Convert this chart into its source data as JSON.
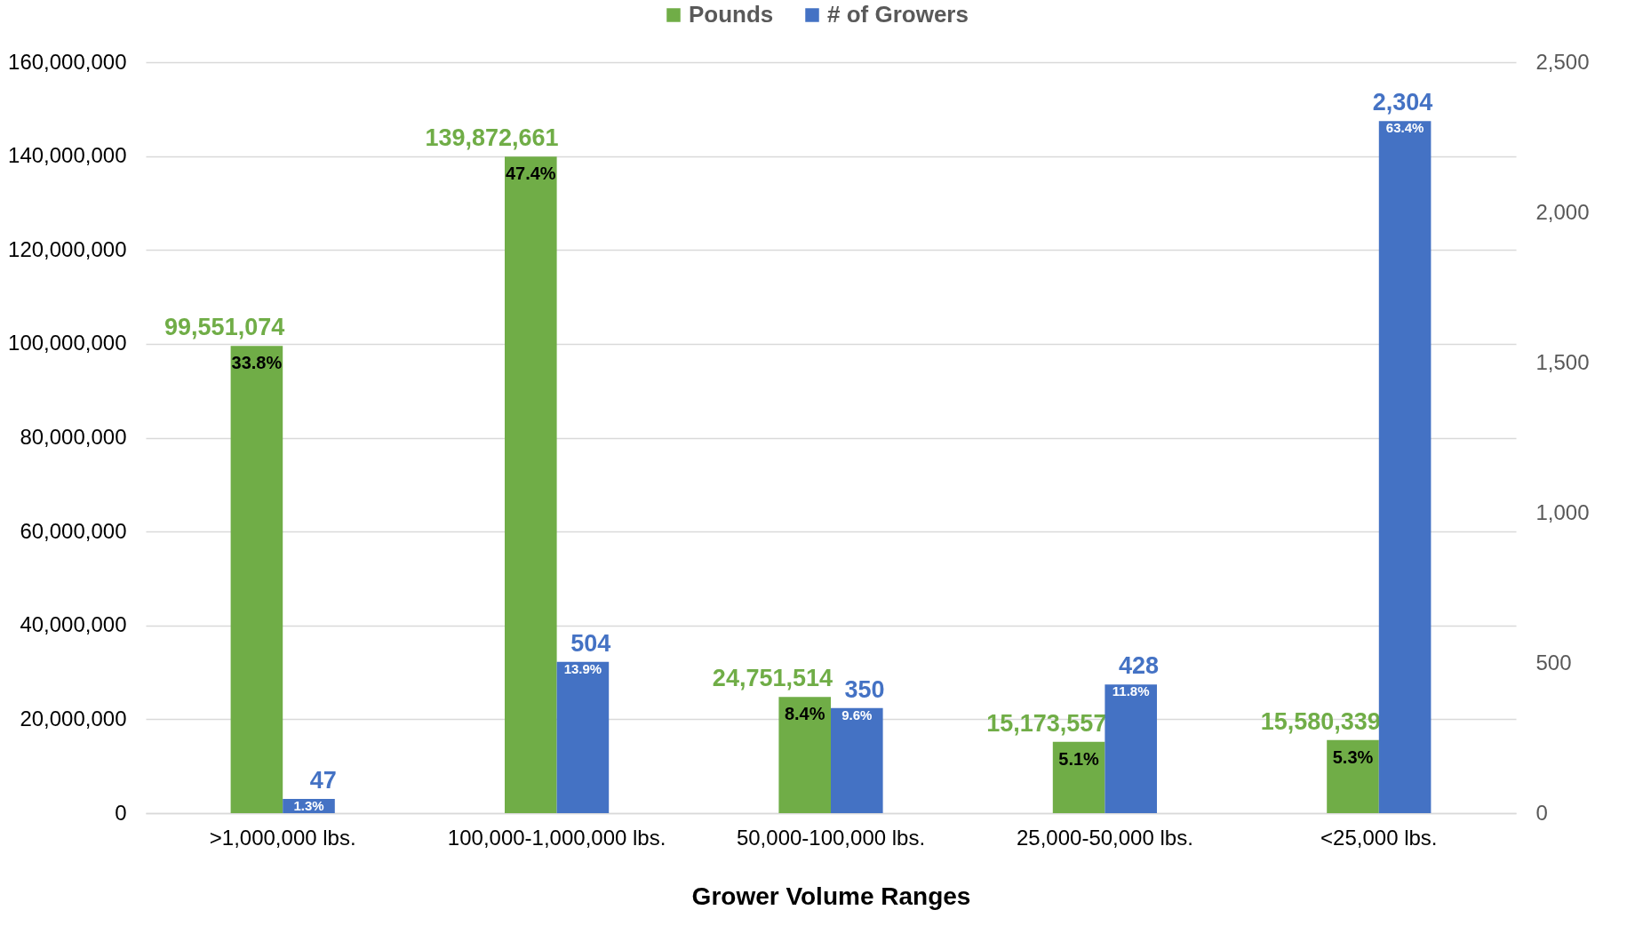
{
  "chart_data": {
    "type": "bar",
    "xlabel": "Grower Volume Ranges",
    "categories": [
      ">1,000,000 lbs.",
      "100,000-1,000,000 lbs.",
      "50,000-100,000 lbs.",
      "25,000-50,000 lbs.",
      "<25,000 lbs."
    ],
    "series": [
      {
        "name": "Pounds",
        "color": "#70ad47",
        "values": [
          99551074,
          139872661,
          24751514,
          15173557,
          15580339
        ],
        "value_labels": [
          "99,551,074",
          "139,872,661",
          "24,751,514",
          "15,173,557",
          "15,580,339"
        ]
      },
      {
        "name": "# of Growers",
        "color": "#4472c4",
        "axis": "y2",
        "values": [
          47,
          504,
          350,
          428,
          2304
        ],
        "value_labels": [
          "47",
          "504",
          "350",
          "428",
          "2,304"
        ]
      }
    ],
    "annotations": [
      "33.8%",
      "47.4%",
      "8.4%",
      "5.1%",
      "5.3%",
      "1.3%",
      "13.9%",
      "9.6%",
      "11.8%",
      "63.4%"
    ],
    "ylim": [
      0,
      160000000
    ],
    "yticks": [
      0,
      {
        "value": 20000000,
        "label": "20,000,000"
      },
      {
        "value": 40000000,
        "label": "40,000,000"
      },
      {
        "value": 60000000,
        "label": "60,000,000"
      },
      {
        "value": 80000000,
        "label": "80,000,000"
      },
      {
        "value": 100000000,
        "label": "100,000,000"
      },
      {
        "value": 120000000,
        "label": "120,000,000"
      },
      {
        "value": 140000000,
        "label": "140,000,000"
      },
      {
        "value": 160000000,
        "label": "160,000,000"
      }
    ],
    "y2lim": [
      0,
      2500
    ],
    "y2ticks": [
      0,
      500,
      {
        "value": 1000,
        "label": "1,000"
      },
      {
        "value": 1500,
        "label": "1,500"
      },
      {
        "value": 2000,
        "label": "2,000"
      },
      {
        "value": 2500,
        "label": "2,500"
      }
    ],
    "grid": "y",
    "legend": "top"
  }
}
